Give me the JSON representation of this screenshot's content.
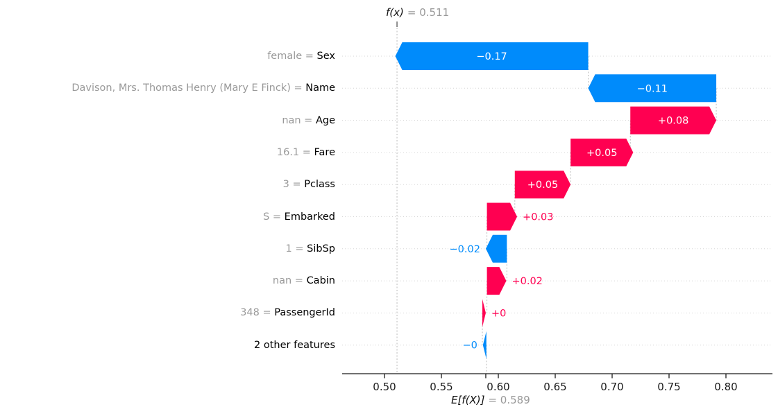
{
  "chart_data": {
    "type": "bar",
    "variant": "shap-waterfall",
    "fx": {
      "label": "f(x)",
      "rest": "= 0.511",
      "value": 0.511
    },
    "baseline": {
      "label": "E[f(X)]",
      "rest": "= 0.589",
      "value": 0.589
    },
    "separator": " = ",
    "colors": {
      "positive": "#ff0051",
      "negative": "#008bfb",
      "muted_text": "#999999",
      "grid": "#d6d6d6",
      "guide": "#bbbbbb",
      "axis": "#1a1a1a",
      "bar_text": "#ffffff"
    },
    "x_axis": {
      "domain": [
        0.4628,
        0.8409
      ],
      "ticks": [
        {
          "value": 0.5,
          "label": "0.50"
        },
        {
          "value": 0.55,
          "label": "0.55"
        },
        {
          "value": 0.6,
          "label": "0.60"
        },
        {
          "value": 0.65,
          "label": "0.65"
        },
        {
          "value": 0.7,
          "label": "0.70"
        },
        {
          "value": 0.75,
          "label": "0.75"
        },
        {
          "value": 0.8,
          "label": "0.80"
        }
      ]
    },
    "rows": [
      {
        "value": "female",
        "feature": "Sex",
        "shap": "−0.17",
        "sign": "neg",
        "lo": 0.5095,
        "hi": 0.679,
        "label_pos": "inside"
      },
      {
        "value": "Davison, Mrs. Thomas Henry (Mary E Finck)",
        "feature": "Name",
        "shap": "−0.11",
        "sign": "neg",
        "lo": 0.679,
        "hi": 0.7915,
        "label_pos": "inside"
      },
      {
        "value": "nan",
        "feature": "Age",
        "shap": "+0.08",
        "sign": "pos",
        "lo": 0.716,
        "hi": 0.7915,
        "label_pos": "inside"
      },
      {
        "value": "16.1",
        "feature": "Fare",
        "shap": "+0.05",
        "sign": "pos",
        "lo": 0.6635,
        "hi": 0.7185,
        "label_pos": "inside"
      },
      {
        "value": "3",
        "feature": "Pclass",
        "shap": "+0.05",
        "sign": "pos",
        "lo": 0.6145,
        "hi": 0.6635,
        "label_pos": "inside"
      },
      {
        "value": "S",
        "feature": "Embarked",
        "shap": "+0.03",
        "sign": "pos",
        "lo": 0.59,
        "hi": 0.6165,
        "label_pos": "right"
      },
      {
        "value": "1",
        "feature": "SibSp",
        "shap": "−0.02",
        "sign": "neg",
        "lo": 0.589,
        "hi": 0.6075,
        "label_pos": "left"
      },
      {
        "value": "nan",
        "feature": "Cabin",
        "shap": "+0.02",
        "sign": "pos",
        "lo": 0.59,
        "hi": 0.607,
        "label_pos": "right"
      },
      {
        "value": "348",
        "feature": "PassengerId",
        "shap": "+0",
        "sign": "pos",
        "lo": 0.586,
        "hi": 0.589,
        "label_pos": "right"
      },
      {
        "value": "",
        "feature": "2 other features",
        "shap": "−0",
        "sign": "neg",
        "lo": 0.5865,
        "hi": 0.5895,
        "label_pos": "left"
      }
    ]
  }
}
